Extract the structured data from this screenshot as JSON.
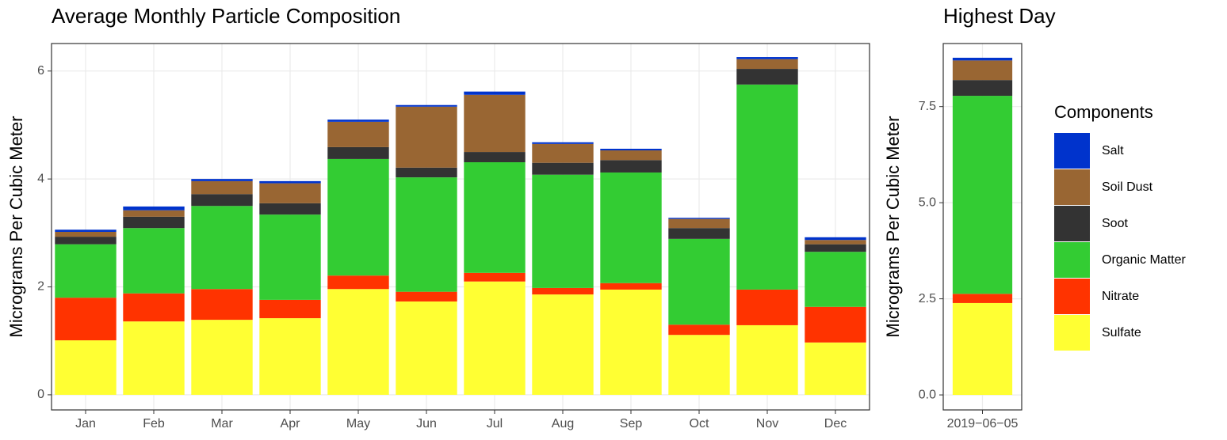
{
  "chart_data": [
    {
      "type": "stacked_bar",
      "title": "Average Monthly Particle Composition",
      "y_label": "Micrograms Per Cubic Meter",
      "legend_title": "Components",
      "categories": [
        "Jan",
        "Feb",
        "Mar",
        "Apr",
        "May",
        "Jun",
        "Jul",
        "Aug",
        "Sep",
        "Oct",
        "Nov",
        "Dec"
      ],
      "series": [
        {
          "name": "Sulfate",
          "color": "#ffff33",
          "values": [
            1.01,
            1.36,
            1.39,
            1.42,
            1.96,
            1.73,
            2.1,
            1.86,
            1.95,
            1.11,
            1.29,
            0.97
          ]
        },
        {
          "name": "Nitrate",
          "color": "#ff3300",
          "values": [
            0.79,
            0.52,
            0.57,
            0.34,
            0.25,
            0.18,
            0.16,
            0.12,
            0.12,
            0.19,
            0.66,
            0.66
          ]
        },
        {
          "name": "Organic Matter",
          "color": "#33cc33",
          "values": [
            0.99,
            1.21,
            1.54,
            1.58,
            2.16,
            2.12,
            2.05,
            2.1,
            2.05,
            1.59,
            3.8,
            1.02
          ]
        },
        {
          "name": "Soot",
          "color": "#333333",
          "values": [
            0.14,
            0.21,
            0.22,
            0.21,
            0.22,
            0.18,
            0.19,
            0.22,
            0.23,
            0.2,
            0.29,
            0.14
          ]
        },
        {
          "name": "Soil Dust",
          "color": "#996633",
          "values": [
            0.09,
            0.12,
            0.24,
            0.37,
            0.47,
            1.13,
            1.06,
            0.35,
            0.18,
            0.17,
            0.18,
            0.08
          ]
        },
        {
          "name": "Salt",
          "color": "#0033cc",
          "values": [
            0.04,
            0.07,
            0.04,
            0.04,
            0.04,
            0.03,
            0.06,
            0.03,
            0.03,
            0.02,
            0.04,
            0.05
          ]
        }
      ],
      "ylim": [
        -0.28,
        6.51
      ],
      "yticks": [
        0,
        2,
        4,
        6
      ],
      "grid": true
    },
    {
      "type": "stacked_bar",
      "title": "Highest Day",
      "y_label": "Micrograms Per Cubic Meter",
      "categories": [
        "2019−06−05"
      ],
      "series": [
        {
          "name": "Sulfate",
          "color": "#ffff33",
          "values": [
            2.39
          ]
        },
        {
          "name": "Nitrate",
          "color": "#ff3300",
          "values": [
            0.24
          ]
        },
        {
          "name": "Organic Matter",
          "color": "#33cc33",
          "values": [
            5.15
          ]
        },
        {
          "name": "Soot",
          "color": "#333333",
          "values": [
            0.41
          ]
        },
        {
          "name": "Soil Dust",
          "color": "#996633",
          "values": [
            0.51
          ]
        },
        {
          "name": "Salt",
          "color": "#0033cc",
          "values": [
            0.07
          ]
        }
      ],
      "ylim": [
        -0.39,
        9.14
      ],
      "yticks": [
        {
          "value": 0,
          "label": "0.0"
        },
        2.5,
        {
          "value": 5,
          "label": "5.0"
        },
        7.5
      ],
      "grid": true
    }
  ]
}
